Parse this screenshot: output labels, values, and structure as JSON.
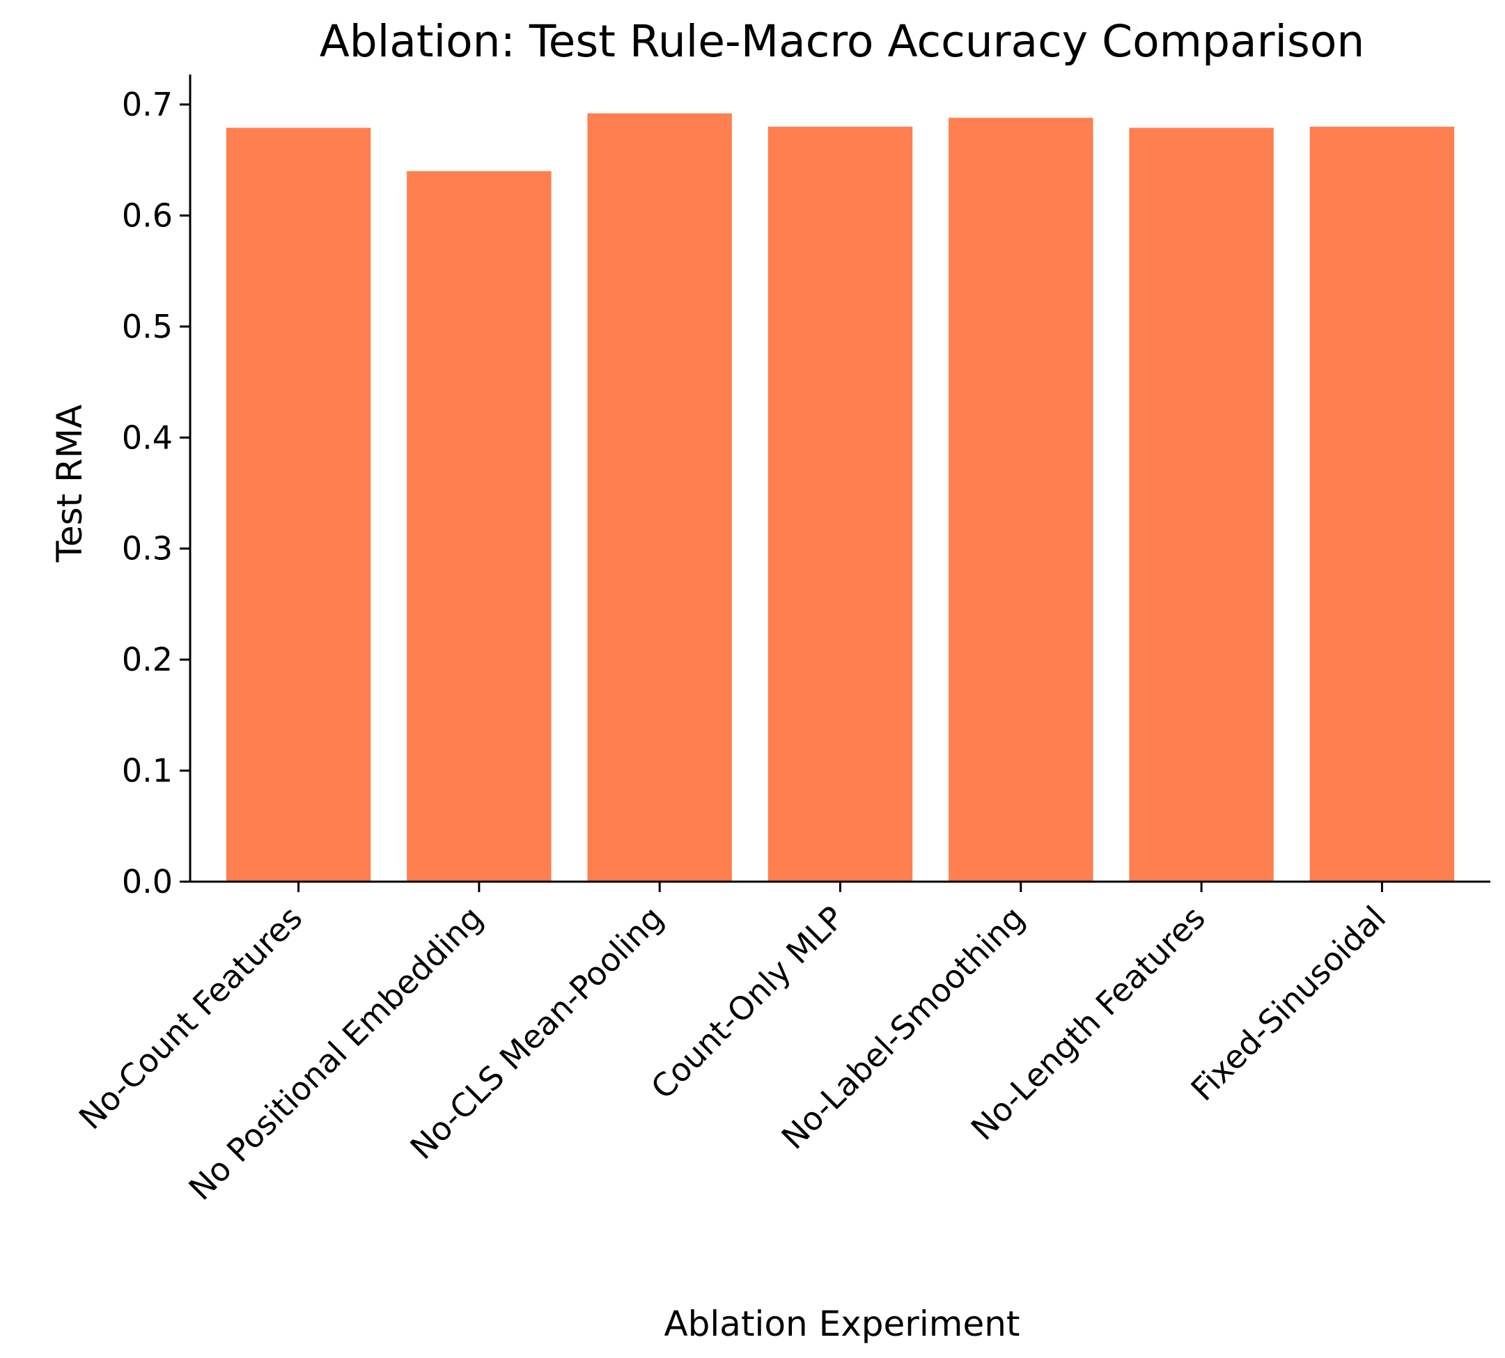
{
  "chart_data": {
    "type": "bar",
    "title": "Ablation: Test Rule-Macro Accuracy Comparison",
    "xlabel": "Ablation Experiment",
    "ylabel": "Test RMA",
    "categories": [
      "No-Count Features",
      "No Positional Embedding",
      "No-CLS Mean-Pooling",
      "Count-Only MLP",
      "No-Label-Smoothing",
      "No-Length Features",
      "Fixed-Sinusoidal"
    ],
    "values": [
      0.679,
      0.64,
      0.692,
      0.68,
      0.688,
      0.679,
      0.68
    ],
    "ylim": [
      0,
      0.727
    ],
    "yticks": [
      "0.0",
      "0.1",
      "0.2",
      "0.3",
      "0.4",
      "0.5",
      "0.6",
      "0.7"
    ],
    "bar_color": "#ff7f50",
    "grid": false,
    "spines": [
      "left",
      "bottom"
    ]
  }
}
